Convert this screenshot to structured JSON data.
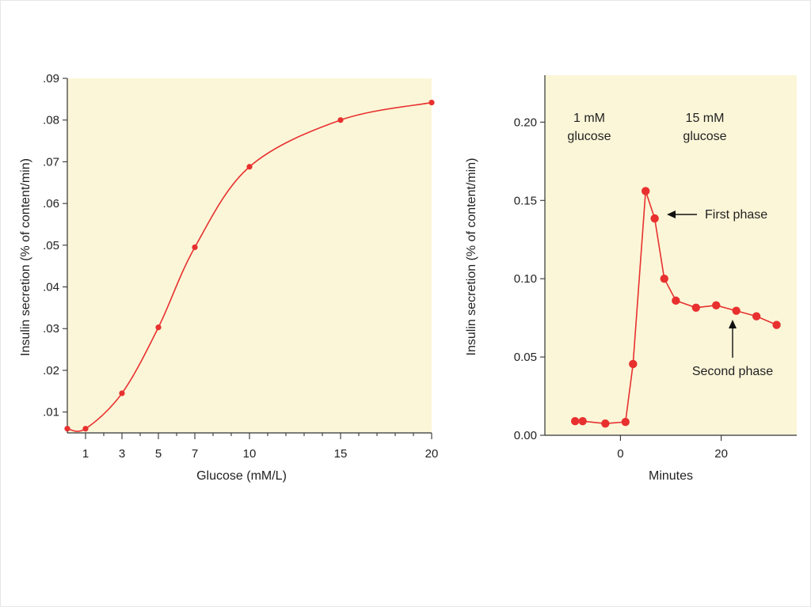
{
  "colors": {
    "plot_background": "#fbf6d8",
    "series": "#e8302f",
    "axis": "#333333"
  },
  "chart_data": [
    {
      "type": "line",
      "title": "",
      "xlabel": "Glucose (mM/L)",
      "ylabel": "Insulin secretion (% of content/min)",
      "xlim": [
        0,
        20
      ],
      "ylim": [
        0.005,
        0.09
      ],
      "x_ticks": [
        1,
        3,
        5,
        7,
        10,
        15,
        20
      ],
      "x_tick_labels": [
        "1",
        "3",
        "5",
        "7",
        "10",
        "15",
        "20"
      ],
      "y_ticks": [
        0.01,
        0.02,
        0.03,
        0.04,
        0.05,
        0.06,
        0.07,
        0.08,
        0.09
      ],
      "y_tick_labels": [
        ".01",
        ".02",
        ".03",
        ".04",
        ".05",
        ".06",
        ".07",
        ".08",
        ".09"
      ],
      "x_minor_ticks": [
        2,
        4,
        6,
        8,
        9,
        11,
        12,
        13,
        14,
        16,
        17,
        18,
        19
      ],
      "series": [
        {
          "name": "Insulin secretion",
          "x": [
            0,
            1,
            3,
            5,
            7,
            10,
            15,
            20
          ],
          "values": [
            0.006,
            0.006,
            0.0145,
            0.0303,
            0.0495,
            0.0688,
            0.08,
            0.0842
          ]
        }
      ]
    },
    {
      "type": "line",
      "title": "",
      "xlabel": "Minutes",
      "ylabel": "Insulin secretion (% of content/min)",
      "xlim": [
        -15,
        35
      ],
      "ylim": [
        0,
        0.23
      ],
      "x_ticks": [
        0,
        20
      ],
      "x_tick_labels": [
        "0",
        "20"
      ],
      "y_ticks": [
        0,
        0.05,
        0.1,
        0.15,
        0.2
      ],
      "y_tick_labels": [
        "0.00",
        "0.05",
        "0.10",
        "0.15",
        "0.20"
      ],
      "annotations": {
        "low_glucose": [
          "1 mM",
          "glucose"
        ],
        "high_glucose": [
          "15 mM",
          "glucose"
        ],
        "first_phase": "First phase",
        "second_phase": "Second phase"
      },
      "series": [
        {
          "name": "Insulin secretion",
          "x": [
            -9,
            -7.5,
            -3,
            1,
            2.5,
            5,
            6.8,
            8.7,
            11,
            15,
            19,
            23,
            27,
            31
          ],
          "values": [
            0.009,
            0.009,
            0.0075,
            0.0085,
            0.0455,
            0.156,
            0.1385,
            0.1,
            0.086,
            0.0815,
            0.083,
            0.0795,
            0.076,
            0.0705
          ]
        }
      ]
    }
  ]
}
